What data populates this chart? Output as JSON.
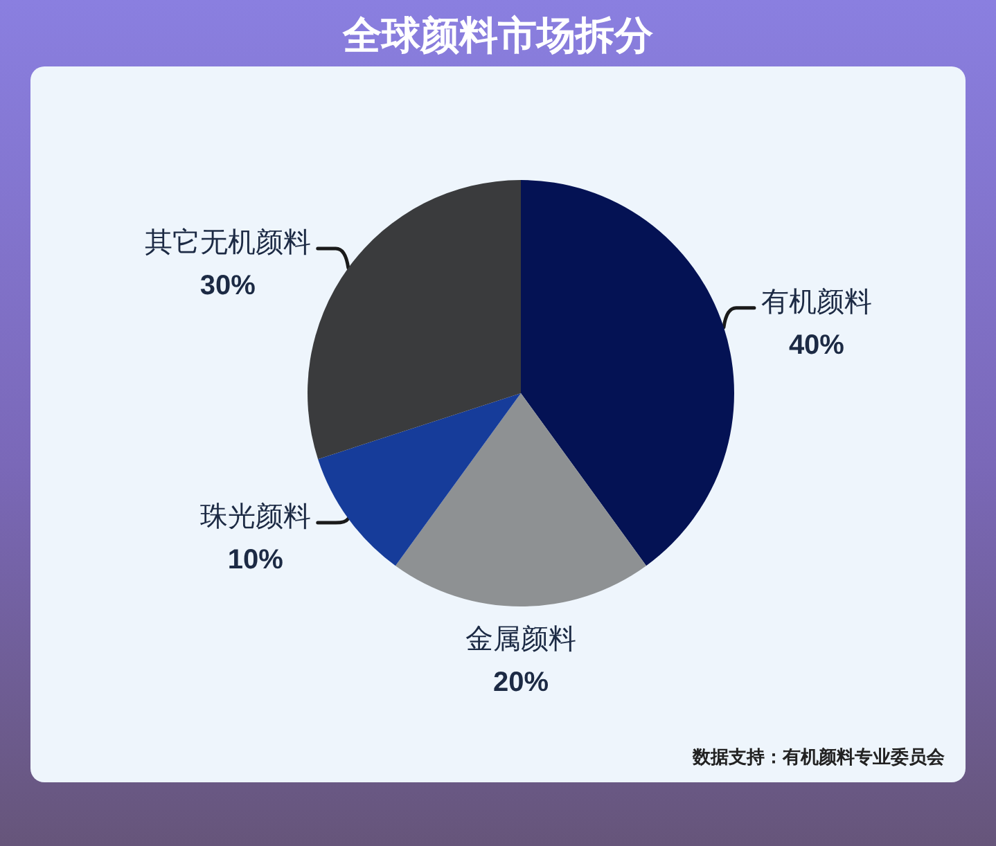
{
  "chart_data": {
    "type": "pie",
    "title": "全球颜料市场拆分",
    "categories": [
      "有机颜料",
      "金属颜料",
      "珠光颜料",
      "其它无机颜料"
    ],
    "values": [
      40,
      20,
      10,
      30
    ],
    "colors": [
      "#041254",
      "#8e9193",
      "#163c9a",
      "#3a3b3d"
    ],
    "value_labels": [
      "40%",
      "20%",
      "10%",
      "30%"
    ],
    "annotations": [
      "数据支持：有机颜料专业委员会"
    ]
  }
}
